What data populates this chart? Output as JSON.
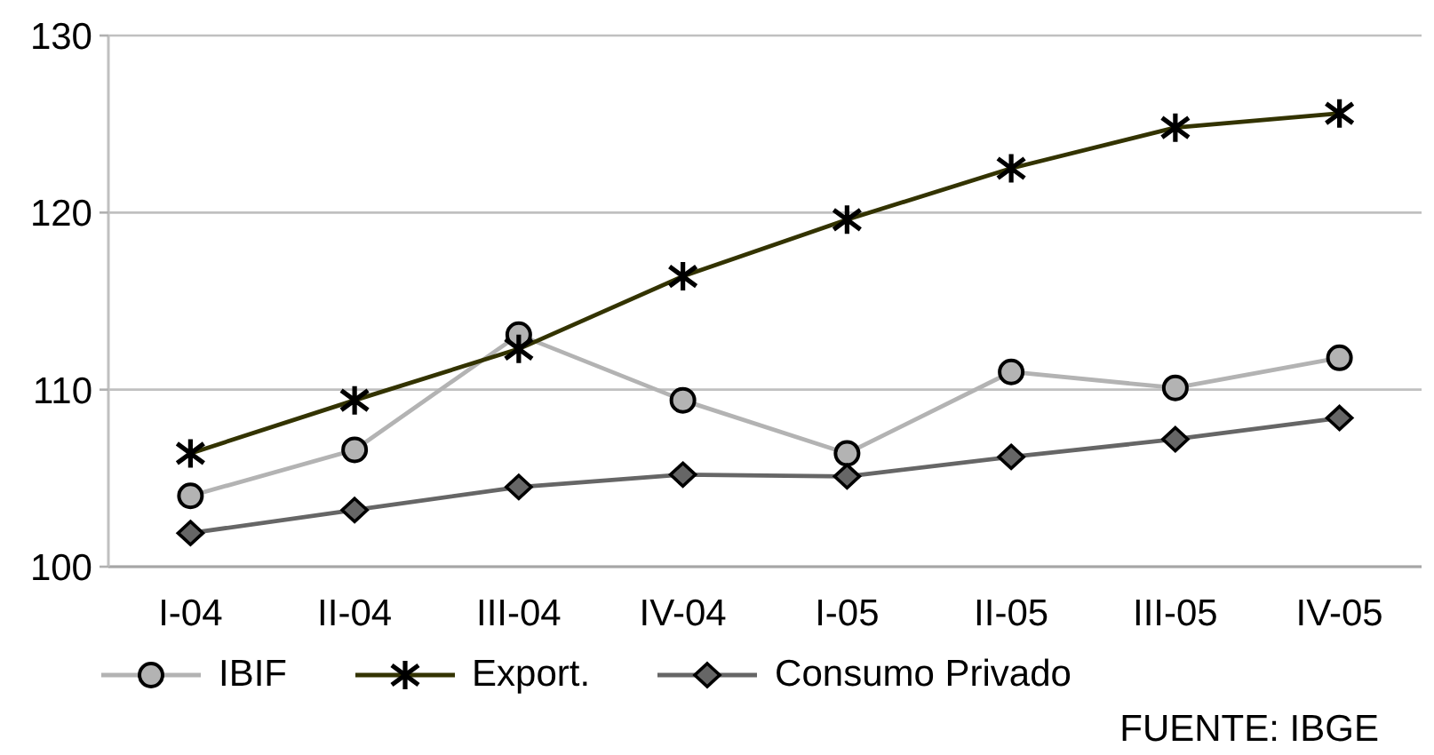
{
  "chart_data": {
    "type": "line",
    "categories": [
      "I-04",
      "II-04",
      "III-04",
      "IV-04",
      "I-05",
      "II-05",
      "III-05",
      "IV-05"
    ],
    "series": [
      {
        "name": "IBIF",
        "color": "#b3b3b3",
        "marker": "circle",
        "values": [
          104.0,
          106.6,
          113.1,
          109.4,
          106.4,
          111.0,
          110.1,
          111.8
        ]
      },
      {
        "name": "Export.",
        "color": "#333300",
        "marker": "cross",
        "values": [
          106.4,
          109.4,
          112.3,
          116.4,
          119.6,
          122.5,
          124.8,
          125.6
        ]
      },
      {
        "name": "Consumo Privado",
        "color": "#666666",
        "marker": "diamond",
        "values": [
          101.9,
          103.2,
          104.5,
          105.2,
          105.1,
          106.2,
          107.2,
          108.4
        ]
      }
    ],
    "ylim": [
      100,
      130
    ],
    "yticks": [
      100,
      110,
      120,
      130
    ],
    "grid": "y",
    "legend": "bottom",
    "annotations": [
      "FUENTE: IBGE"
    ]
  }
}
